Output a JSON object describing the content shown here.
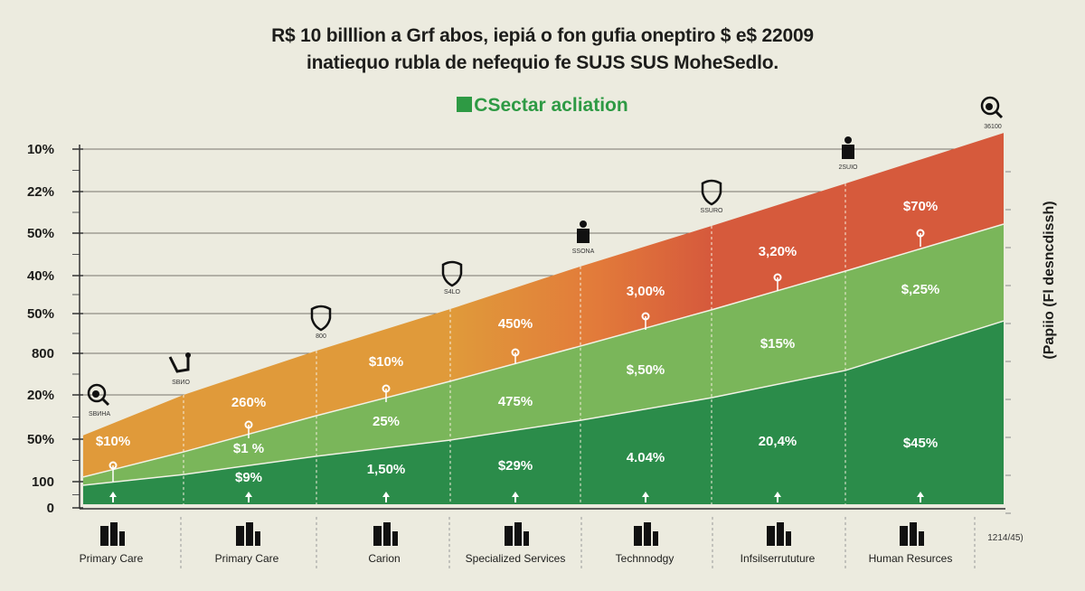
{
  "title_line1": "R$ 10 billlion a Grf abos, iepiá o fon gufia oneptiro $ e$ 22009",
  "title_line2": "inatiequo rubla de nefequio fe SUJS SUS MoheSedlo.",
  "legend_label": "CSectar acliation",
  "colors": {
    "background": "#ecebdf",
    "orange": "#e09a3a",
    "red": "#d65a3c",
    "light_green": "#7ab65a",
    "dark_green": "#2b8c4a",
    "legend": "#2e9a44"
  },
  "chart_data": {
    "type": "area",
    "stacked": true,
    "title": "R$ 10 billlion a Grf abos, iepiá o fon gufia oneptiro $ e$ 22009",
    "y_tick_labels": [
      "0",
      "100",
      "50%",
      "20%",
      "800",
      "50%",
      "40%",
      "50%",
      "22%",
      "10%"
    ],
    "ylabel": "(Papiio (Fl desncdissh)",
    "ylim": [
      0,
      105
    ],
    "grid": true,
    "categories": [
      "Primary Care",
      "Primary Care",
      "Carion",
      "Specialized Services",
      "Technnodgy",
      "Infsilserrututure",
      "Human Resurces"
    ],
    "x_extra_label": "1214/45)",
    "boundaries": {
      "dark_green_top": [
        6.3,
        9.3,
        14.4,
        18.9,
        24.4,
        30.7,
        38.3,
        52.1
      ],
      "light_green_top": [
        8.6,
        15.6,
        25.7,
        35.3,
        45.1,
        55.2,
        66.0,
        79.1
      ],
      "orange_red_top": [
        20.2,
        31.5,
        43.8,
        55.4,
        67.3,
        78.6,
        90.4,
        104.5
      ]
    },
    "data_labels": {
      "top_layer": [
        "$10%",
        "260%",
        "$10%",
        "450%",
        "3,00%",
        "3,20%",
        "$70%"
      ],
      "light_green": [
        "",
        "$1 %",
        "25%",
        "475%",
        "$,50%",
        "$15%",
        "$,25%"
      ],
      "dark_green": [
        "",
        "$9%",
        "1,50%",
        "$29%",
        "4.04%",
        "20,4%",
        "$45%"
      ]
    },
    "milestones": [
      {
        "icon": "search-icon",
        "label": "SBИHA"
      },
      {
        "icon": "stethoscope-icon",
        "label": "SBИO"
      },
      {
        "icon": "shield-percent-icon",
        "label": "800"
      },
      {
        "icon": "shield-list-icon",
        "label": "S4LO"
      },
      {
        "icon": "person-path-icon",
        "label": "SSONA"
      },
      {
        "icon": "shield-clock-icon",
        "label": "SSURO"
      },
      {
        "icon": "person-luggage-icon",
        "label": "2SUIO"
      },
      {
        "icon": "search-person-icon",
        "label": "36100"
      }
    ],
    "category_icons": [
      "hospital-icon",
      "family-icon",
      "person-arch-icon",
      "building-person-icon",
      "person-wheelchair-icon",
      "gears-icon",
      "bicycle-icon"
    ]
  }
}
